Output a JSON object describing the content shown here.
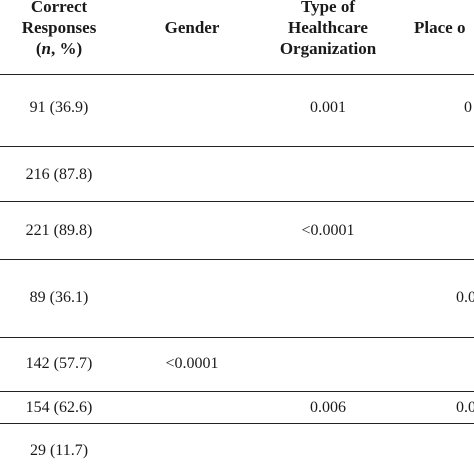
{
  "headers": {
    "correct": {
      "line1": "Correct",
      "line2": "Responses",
      "line3_italic": "n",
      "line3_rest": ", %)"
    },
    "gender": "Gender",
    "org": {
      "line1": "Type of",
      "line2": "Healthcare",
      "line3": "Organization"
    },
    "place": "Place o"
  },
  "rows": [
    {
      "correct": "91 (36.9)",
      "gender": "",
      "org": "0.001",
      "place": "0"
    },
    {
      "correct": "216 (87.8)",
      "gender": "",
      "org": "",
      "place": ""
    },
    {
      "correct": "221 (89.8)",
      "gender": "",
      "org": "<0.0001",
      "place": ""
    },
    {
      "correct": "89 (36.1)",
      "gender": "",
      "org": "",
      "place": "0.0"
    },
    {
      "correct": "142 (57.7)",
      "gender": "<0.0001",
      "org": "",
      "place": ""
    },
    {
      "correct": "154 (62.6)",
      "gender": "",
      "org": "0.006",
      "place": "0.0"
    },
    {
      "correct": "29 (11.7)",
      "gender": "",
      "org": "",
      "place": ""
    }
  ]
}
